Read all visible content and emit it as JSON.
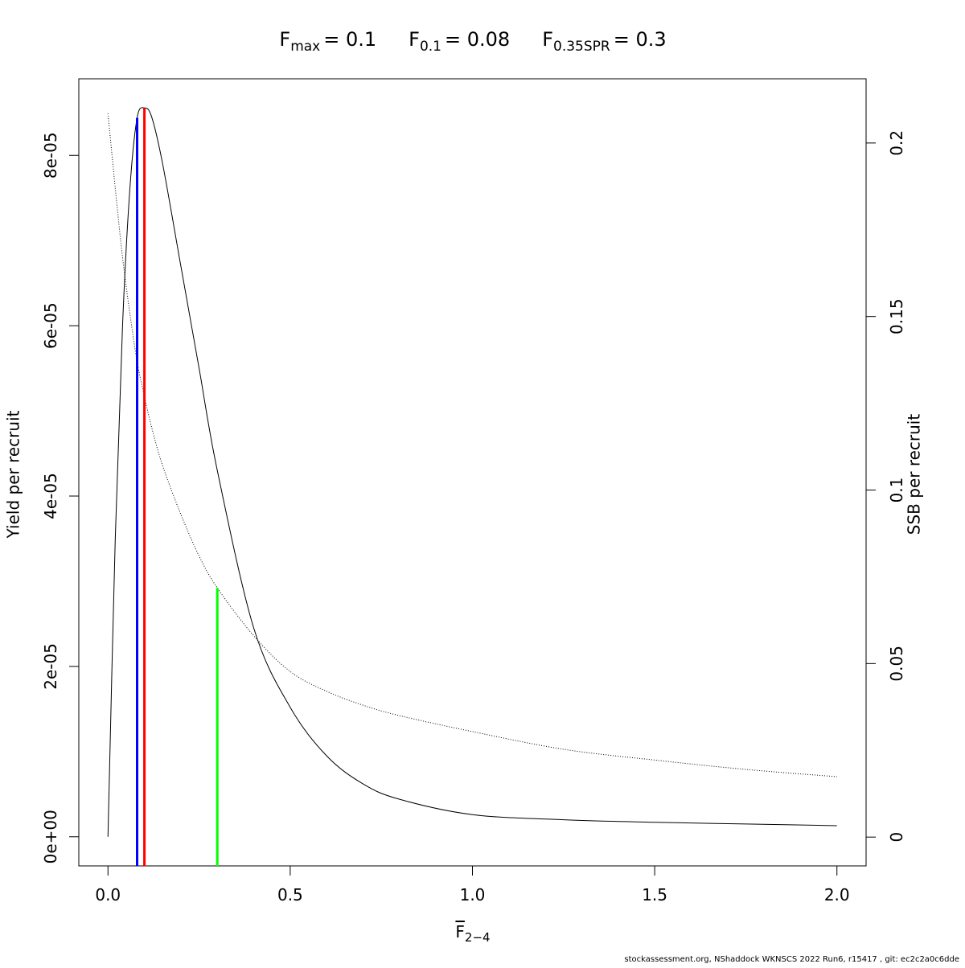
{
  "chart_data": {
    "type": "line",
    "title_parts": [
      {
        "base": "F",
        "sub": "max",
        "rest": "= 0.1"
      },
      {
        "base": "F",
        "sub": "0.1",
        "rest": "= 0.08"
      },
      {
        "base": "F",
        "sub": "0.35SPR",
        "rest": "= 0.3"
      }
    ],
    "xlabel": {
      "base": "F",
      "sub": "2−4"
    },
    "ylabel": "Yield per recruit",
    "y2label": "SSB per recruit",
    "footer": "stockassessment.org, NShaddock  WKNSCS  2022  Run6, r15417 , git: ec2c2a0c6dde",
    "x": [
      0,
      0.02,
      0.04,
      0.06,
      0.08,
      0.1,
      0.12,
      0.15,
      0.2,
      0.25,
      0.3,
      0.4,
      0.5,
      0.6,
      0.7,
      0.8,
      1.0,
      1.25,
      1.5,
      1.75,
      2.0
    ],
    "series": [
      {
        "name": "Yield per recruit",
        "color": "#000000",
        "style": "solid",
        "values": [
          0,
          3.5e-05,
          6e-05,
          7.6e-05,
          8.44e-05,
          8.557e-05,
          8.45e-05,
          7.9e-05,
          6.7e-05,
          5.5e-05,
          4.3e-05,
          2.45e-05,
          1.52e-05,
          9.5e-06,
          6.2e-06,
          4.4e-06,
          2.6e-06,
          2e-06,
          1.7e-06,
          1.5e-06,
          1.3e-06
        ]
      },
      {
        "name": "SSB per recruit",
        "color": "#000000",
        "style": "dotted",
        "axis": "y2",
        "values": [
          0.2085,
          0.187,
          0.167,
          0.151,
          0.137,
          0.127,
          0.118,
          0.107,
          0.093,
          0.081,
          0.0718,
          0.058,
          0.0477,
          0.042,
          0.038,
          0.035,
          0.0304,
          0.0253,
          0.0222,
          0.0195,
          0.0174
        ]
      }
    ],
    "reference_lines": [
      {
        "x": 0.08,
        "value": 8.44e-05,
        "color": "#0000ff"
      },
      {
        "x": 0.1,
        "value": 8.557e-05,
        "color": "#ff0000"
      },
      {
        "x": 0.3,
        "value": 0.0718,
        "axis": "y2",
        "color": "#00ff00"
      }
    ],
    "xlim": [
      -0.08,
      2.08
    ],
    "xticks": [
      {
        "value": 0,
        "label": "0.0"
      },
      {
        "value": 0.5,
        "label": "0.5"
      },
      {
        "value": 1,
        "label": "1.0"
      },
      {
        "value": 1.5,
        "label": "1.5"
      },
      {
        "value": 2,
        "label": "2.0"
      }
    ],
    "ylim": [
      -3.42e-06,
      8.899e-05
    ],
    "yticks": [
      {
        "value": 0,
        "label": "0e+00"
      },
      {
        "value": 2e-05,
        "label": "2e-05"
      },
      {
        "value": 4e-05,
        "label": "4e-05"
      },
      {
        "value": 6e-05,
        "label": "6e-05"
      },
      {
        "value": 8e-05,
        "label": "8e-05"
      }
    ],
    "y2lim": [
      -0.0083,
      0.2185
    ],
    "y2ticks": [
      0,
      0.05,
      0.1,
      0.15,
      0.2
    ]
  }
}
